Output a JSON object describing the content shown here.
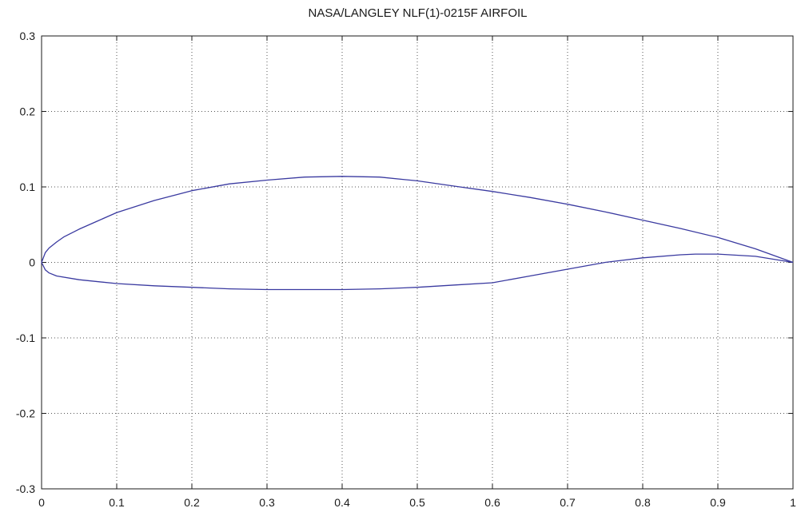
{
  "chart_data": {
    "type": "line",
    "title": "NASA/LANGLEY NLF(1)-0215F AIRFOIL",
    "xlabel": "",
    "ylabel": "",
    "xlim": [
      0,
      1
    ],
    "ylim": [
      -0.3,
      0.3
    ],
    "grid": true,
    "x_ticks": [
      0,
      0.1,
      0.2,
      0.3,
      0.4,
      0.5,
      0.6,
      0.7,
      0.8,
      0.9,
      1
    ],
    "x_tick_labels": [
      "0",
      "0.1",
      "0.2",
      "0.3",
      "0.4",
      "0.5",
      "0.6",
      "0.7",
      "0.8",
      "0.9",
      "1"
    ],
    "y_ticks": [
      -0.3,
      -0.2,
      -0.1,
      0,
      0.1,
      0.2,
      0.3
    ],
    "y_tick_labels": [
      "-0.3",
      "-0.2",
      "-0.1",
      "0",
      "0.1",
      "0.2",
      "0.3"
    ],
    "line_color": "#3a3aa0",
    "series": [
      {
        "x": [
          0,
          0.005,
          0.01,
          0.02,
          0.03,
          0.05,
          0.075,
          0.1,
          0.15,
          0.2,
          0.25,
          0.3,
          0.35,
          0.4,
          0.45,
          0.5,
          0.55,
          0.6,
          0.65,
          0.7,
          0.75,
          0.8,
          0.85,
          0.9,
          0.95,
          1
        ],
        "y": [
          0,
          0.013,
          0.019,
          0.027,
          0.034,
          0.044,
          0.055,
          0.066,
          0.082,
          0.095,
          0.104,
          0.109,
          0.113,
          0.114,
          0.113,
          0.108,
          0.101,
          0.094,
          0.086,
          0.077,
          0.067,
          0.056,
          0.045,
          0.033,
          0.018,
          0
        ]
      },
      {
        "x": [
          0,
          0.005,
          0.01,
          0.02,
          0.05,
          0.1,
          0.15,
          0.2,
          0.25,
          0.3,
          0.35,
          0.4,
          0.45,
          0.5,
          0.55,
          0.6,
          0.65,
          0.7,
          0.75,
          0.8,
          0.85,
          0.87,
          0.9,
          0.95,
          1
        ],
        "y": [
          0,
          -0.01,
          -0.014,
          -0.018,
          -0.023,
          -0.028,
          -0.031,
          -0.033,
          -0.035,
          -0.036,
          -0.036,
          -0.036,
          -0.035,
          -0.033,
          -0.03,
          -0.027,
          -0.018,
          -0.009,
          0,
          0.006,
          0.01,
          0.011,
          0.011,
          0.008,
          0
        ]
      }
    ]
  }
}
